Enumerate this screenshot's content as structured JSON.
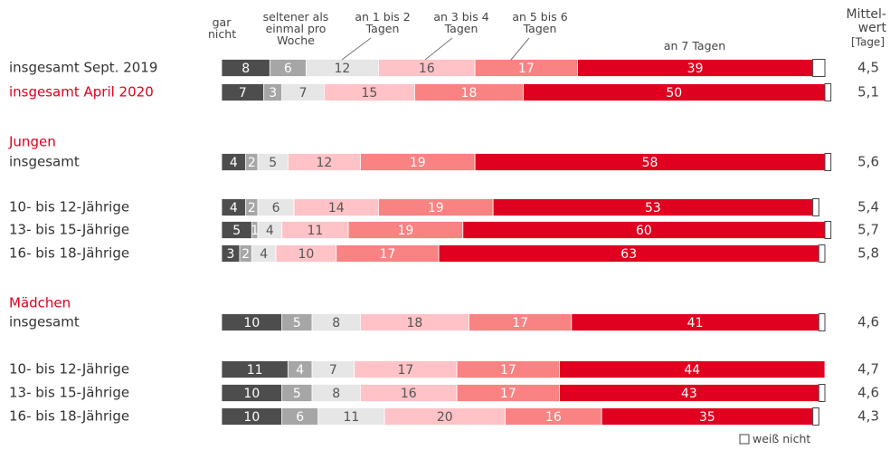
{
  "chart_data": {
    "type": "stacked-bar-horizontal",
    "categories": [
      "insgesamt Sept. 2019",
      "insgesamt April 2020",
      "insgesamt",
      "10- bis 12-Jährige",
      "13- bis 15-Jährige",
      "16- bis 18-Jährige",
      "insgesamt",
      "10- bis 12-Jährige",
      "13- bis 15-Jährige",
      "16- bis 18-Jährige"
    ],
    "highlight_index": 1,
    "highlight_color": "#e0001f",
    "groups": [
      {
        "name": "Jungen",
        "start": 2
      },
      {
        "name": "Mädchen",
        "start": 6
      }
    ],
    "xlim": [
      0,
      100
    ],
    "series": [
      {
        "name": "gar nicht",
        "color": "#4d4d4d",
        "label_color": "#ffffff",
        "values": [
          8,
          7,
          4,
          4,
          5,
          3,
          10,
          11,
          10,
          10
        ]
      },
      {
        "name": "seltener als einmal pro Woche",
        "color": "#a6a6a6",
        "label_color": "#ffffff",
        "values": [
          6,
          3,
          2,
          2,
          1,
          2,
          5,
          4,
          5,
          6
        ]
      },
      {
        "name": "an 1 bis 2 Tagen",
        "color": "#e6e6e6",
        "label_color": "#555555",
        "values": [
          12,
          7,
          5,
          6,
          4,
          4,
          8,
          7,
          8,
          11
        ]
      },
      {
        "name": "an 3 bis 4 Tagen",
        "color": "#ffc2c6",
        "label_color": "#555555",
        "values": [
          16,
          15,
          12,
          14,
          11,
          10,
          18,
          17,
          16,
          20
        ]
      },
      {
        "name": "an 5 bis 6 Tagen",
        "color": "#f98282",
        "label_color": "#ffffff",
        "values": [
          17,
          18,
          19,
          19,
          19,
          17,
          17,
          17,
          17,
          16
        ]
      },
      {
        "name": "an 7 Tagen",
        "color": "#e0001f",
        "label_color": "#ffffff",
        "values": [
          39,
          50,
          58,
          53,
          60,
          63,
          41,
          44,
          43,
          35
        ]
      },
      {
        "name": "weiß nicht",
        "color": "#ffffff",
        "values": [
          2,
          1,
          1,
          1,
          1,
          1,
          1,
          0,
          1,
          1
        ]
      }
    ],
    "mean_title": [
      "Mittel-",
      "wert"
    ],
    "mean_unit": "[Tage]",
    "mean": [
      4.5,
      5.1,
      5.6,
      5.4,
      5.7,
      5.8,
      4.6,
      4.7,
      4.6,
      4.3
    ],
    "mean_labels": [
      "4,5",
      "5,1",
      "5,6",
      "5,4",
      "5,7",
      "5,8",
      "4,6",
      "4,7",
      "4,6",
      "4,3"
    ]
  }
}
